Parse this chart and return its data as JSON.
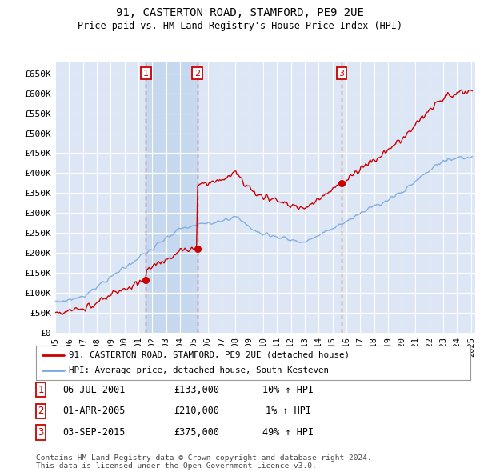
{
  "title1": "91, CASTERTON ROAD, STAMFORD, PE9 2UE",
  "title2": "Price paid vs. HM Land Registry's House Price Index (HPI)",
  "ylabel_ticks": [
    "£0",
    "£50K",
    "£100K",
    "£150K",
    "£200K",
    "£250K",
    "£300K",
    "£350K",
    "£400K",
    "£450K",
    "£500K",
    "£550K",
    "£600K",
    "£650K"
  ],
  "ytick_values": [
    0,
    50000,
    100000,
    150000,
    200000,
    250000,
    300000,
    350000,
    400000,
    450000,
    500000,
    550000,
    600000,
    650000
  ],
  "ylim": [
    0,
    680000
  ],
  "xlim_start": 1995.0,
  "xlim_end": 2025.3,
  "background_color": "#ffffff",
  "plot_bg_color": "#dce6f5",
  "grid_color": "#ffffff",
  "sale_dates": [
    2001.54,
    2005.25,
    2015.67
  ],
  "sale_prices": [
    133000,
    210000,
    375000
  ],
  "sale_labels": [
    "1",
    "2",
    "3"
  ],
  "sale_box_color": "#cc0000",
  "sale_line_color": "#cc0000",
  "shade_color": "#c5d8f0",
  "legend_line1": "91, CASTERTON ROAD, STAMFORD, PE9 2UE (detached house)",
  "legend_line2": "HPI: Average price, detached house, South Kesteven",
  "table_rows": [
    {
      "num": "1",
      "date": "06-JUL-2001",
      "price": "£133,000",
      "change": "10% ↑ HPI"
    },
    {
      "num": "2",
      "date": "01-APR-2005",
      "price": "£210,000",
      "change": "1% ↑ HPI"
    },
    {
      "num": "3",
      "date": "03-SEP-2015",
      "price": "£375,000",
      "change": "49% ↑ HPI"
    }
  ],
  "footer": "Contains HM Land Registry data © Crown copyright and database right 2024.\nThis data is licensed under the Open Government Licence v3.0.",
  "hpi_color": "#7aaadd",
  "price_line_color": "#cc0000"
}
